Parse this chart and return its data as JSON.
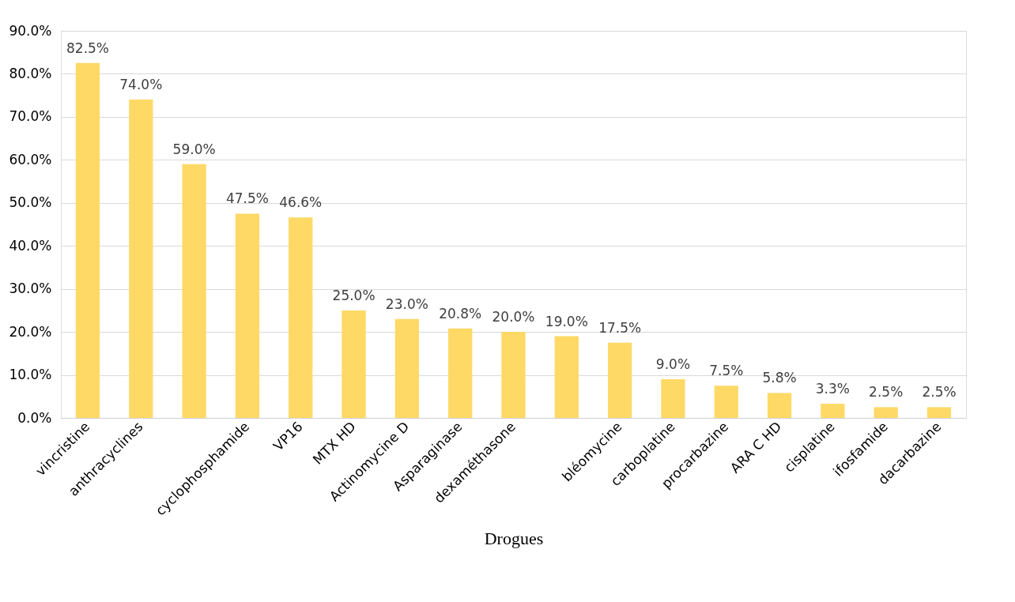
{
  "chart_data": {
    "type": "bar",
    "xlabel": "Drogues",
    "categories": [
      "vincristine",
      "anthracyclines",
      null,
      "cyclophosphamide",
      "VP16",
      "MTX HD",
      "Actinomycine D",
      "Asparaginase",
      "dexaméthasone",
      null,
      "bléomycine",
      "carboplatine",
      "procarbazine",
      "ARA C HD",
      "cisplatine",
      "ifosfamide",
      "dacarbazine"
    ],
    "values": [
      82.5,
      74.0,
      59.0,
      47.5,
      46.6,
      25.0,
      23.0,
      20.8,
      20.0,
      19.0,
      17.5,
      9.0,
      7.5,
      5.8,
      3.3,
      2.5,
      2.5
    ],
    "value_labels": [
      "82.5%",
      "74.0%",
      "59.0%",
      "47.5%",
      "46.6%",
      "25.0%",
      "23.0%",
      "20.8%",
      "20.0%",
      "19.0%",
      "17.5%",
      "9.0%",
      "7.5%",
      "5.8%",
      "3.3%",
      "2.5%",
      "2.5%"
    ],
    "color": "#ffd966",
    "ylim": [
      0,
      90
    ],
    "yticks": [
      {
        "value": 0,
        "label": "0.0%"
      },
      {
        "value": 10,
        "label": "10.0%"
      },
      {
        "value": 20,
        "label": "20.0%"
      },
      {
        "value": 30,
        "label": "30.0%"
      },
      {
        "value": 40,
        "label": "40.0%"
      },
      {
        "value": 50,
        "label": "50.0%"
      },
      {
        "value": 60,
        "label": "60.0%"
      },
      {
        "value": 70,
        "label": "70.0%"
      },
      {
        "value": 80,
        "label": "80.0%"
      },
      {
        "value": 90,
        "label": "90.0%"
      }
    ],
    "grid": "y"
  }
}
